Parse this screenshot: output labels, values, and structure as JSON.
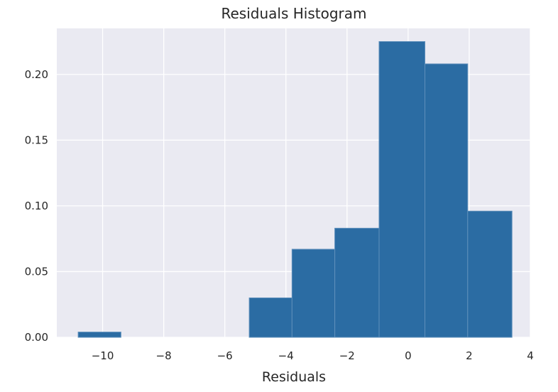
{
  "chart_data": {
    "type": "bar",
    "title": "Residuals Histogram",
    "xlabel": "Residuals",
    "ylabel": "",
    "xlim": [
      -11.5,
      4.0
    ],
    "ylim": [
      0.0,
      0.235
    ],
    "x_ticks": [
      -10,
      -8,
      -6,
      -4,
      -2,
      0,
      2,
      4
    ],
    "x_tick_labels": [
      "−10",
      "−8",
      "−6",
      "−4",
      "−2",
      "0",
      "2",
      "4"
    ],
    "y_ticks": [
      0.0,
      0.05,
      0.1,
      0.15,
      0.2
    ],
    "y_tick_labels": [
      "0.00",
      "0.05",
      "0.10",
      "0.15",
      "0.20"
    ],
    "grid": true,
    "bins": [
      {
        "x0": -10.8,
        "x1": -9.4,
        "value": 0.004
      },
      {
        "x0": -9.4,
        "x1": -8.0,
        "value": 0.0
      },
      {
        "x0": -8.0,
        "x1": -6.6,
        "value": 0.0
      },
      {
        "x0": -6.6,
        "x1": -5.2,
        "value": 0.0
      },
      {
        "x0": -5.2,
        "x1": -3.8,
        "value": 0.03
      },
      {
        "x0": -3.8,
        "x1": -2.4,
        "value": 0.067
      },
      {
        "x0": -2.4,
        "x1": -0.95,
        "value": 0.083
      },
      {
        "x0": -0.95,
        "x1": 0.55,
        "value": 0.225
      },
      {
        "x0": 0.55,
        "x1": 1.95,
        "value": 0.208
      },
      {
        "x0": 1.95,
        "x1": 3.4,
        "value": 0.096
      }
    ],
    "colors": {
      "bar": "#2b6ca3",
      "bar_edge": "#5e8fbb",
      "plot_bg": "#eaeaf2",
      "grid": "#ffffff"
    }
  }
}
